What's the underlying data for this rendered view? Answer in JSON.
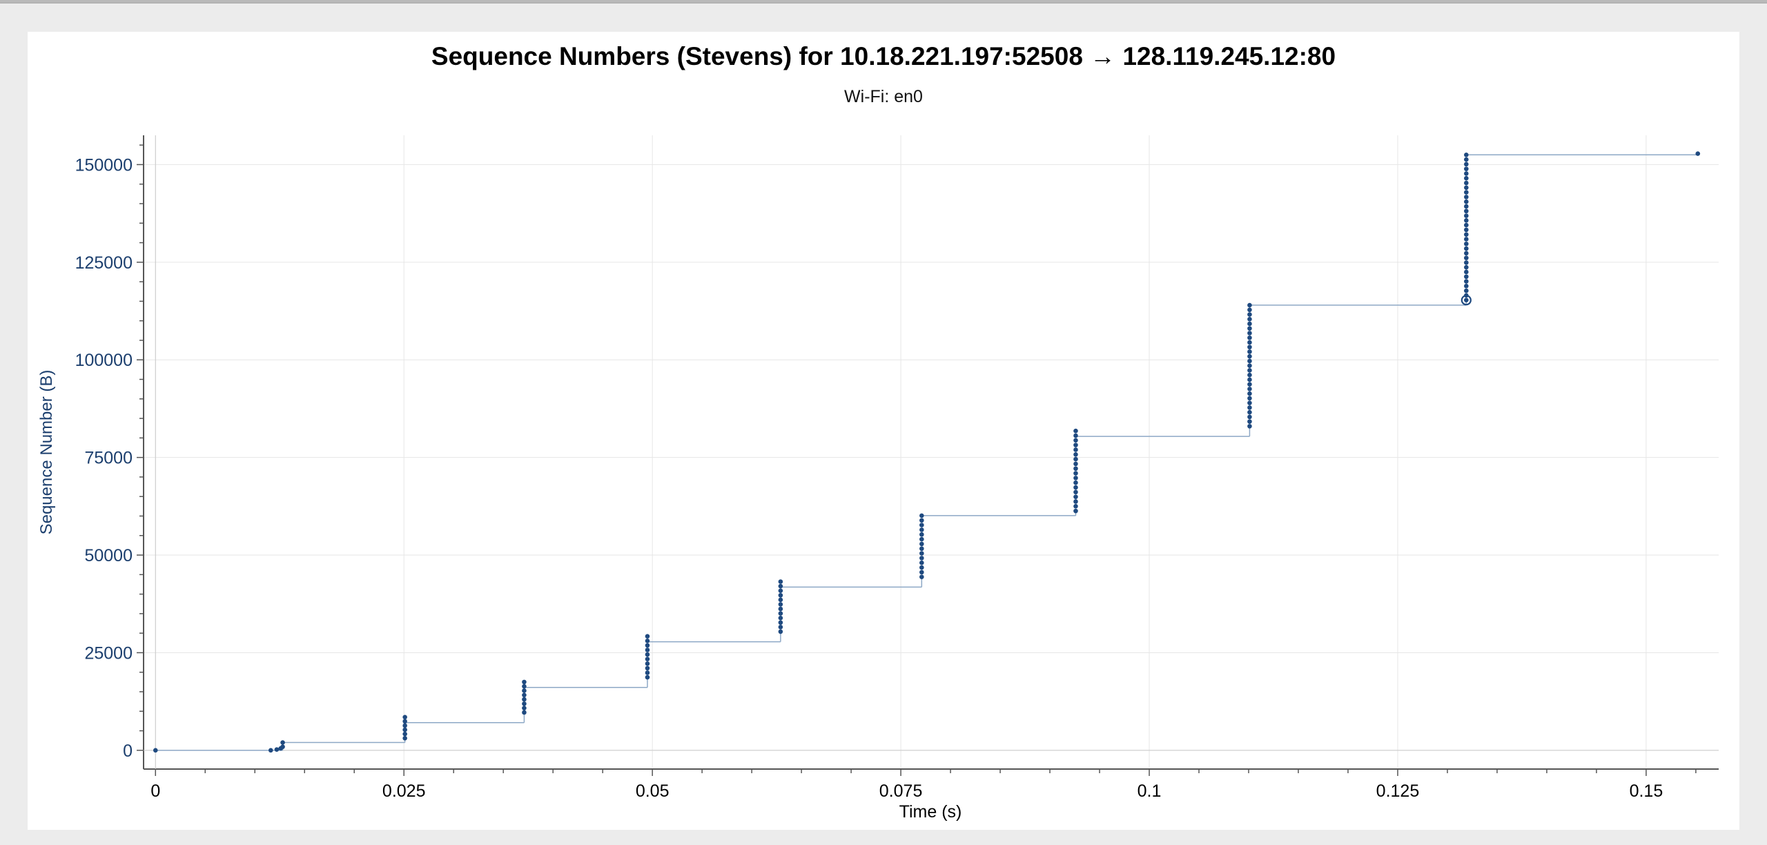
{
  "window": {
    "title": ""
  },
  "chart_data": {
    "type": "scatter",
    "title": "Sequence Numbers (Stevens) for 10.18.221.197:52508 → 128.119.245.12:80",
    "subtitle": "Wi-Fi: en0",
    "xlabel": "Time (s)",
    "ylabel": "Sequence Number (B)",
    "xlim": [
      -0.0012,
      0.1573
    ],
    "ylim": [
      -4800,
      157500
    ],
    "grid": true,
    "x_ticks": [
      {
        "value": 0,
        "label": "0"
      },
      {
        "value": 0.025,
        "label": "0.025"
      },
      {
        "value": 0.05,
        "label": "0.05"
      },
      {
        "value": 0.075,
        "label": "0.075"
      },
      {
        "value": 0.1,
        "label": "0.1"
      },
      {
        "value": 0.125,
        "label": "0.125"
      },
      {
        "value": 0.15,
        "label": "0.15"
      }
    ],
    "y_ticks": [
      {
        "value": 0,
        "label": "0"
      },
      {
        "value": 25000,
        "label": "25000"
      },
      {
        "value": 50000,
        "label": "50000"
      },
      {
        "value": 75000,
        "label": "75000"
      },
      {
        "value": 100000,
        "label": "100000"
      },
      {
        "value": 125000,
        "label": "125000"
      },
      {
        "value": 150000,
        "label": "150000"
      }
    ],
    "colors": {
      "points": "#1f4a80",
      "step_line": "#8da8c6",
      "grid": "#e6e6e6",
      "axis": "#555555"
    },
    "bursts": [
      {
        "t": 0.0,
        "seq_from": 0,
        "seq_to": 0,
        "packets": 1
      },
      {
        "t": 0.0116,
        "seq_from": 0,
        "seq_to": 0,
        "packets": 1
      },
      {
        "t": 0.0122,
        "seq_from": 200,
        "seq_to": 200,
        "packets": 1
      },
      {
        "t": 0.0126,
        "seq_from": 500,
        "seq_to": 500,
        "packets": 1
      },
      {
        "t": 0.0128,
        "seq_from": 900,
        "seq_to": 2000,
        "packets": 2
      },
      {
        "t": 0.0251,
        "seq_from": 3100,
        "seq_to": 8500,
        "packets": 6
      },
      {
        "t": 0.0371,
        "seq_from": 9700,
        "seq_to": 17500,
        "packets": 8
      },
      {
        "t": 0.0495,
        "seq_from": 18700,
        "seq_to": 29200,
        "packets": 10
      },
      {
        "t": 0.0629,
        "seq_from": 30400,
        "seq_to": 43200,
        "packets": 12
      },
      {
        "t": 0.0771,
        "seq_from": 44400,
        "seq_to": 60100,
        "packets": 14
      },
      {
        "t": 0.0926,
        "seq_from": 61300,
        "seq_to": 81800,
        "packets": 18
      },
      {
        "t": 0.1101,
        "seq_from": 83000,
        "seq_to": 114000,
        "packets": 27
      },
      {
        "t": 0.1319,
        "seq_from": 115300,
        "seq_to": 152500,
        "packets": 32
      },
      {
        "t": 0.1552,
        "seq_from": 152800,
        "seq_to": 152800,
        "packets": 1
      }
    ],
    "steps": [
      {
        "t_from": 0.0,
        "t_to": 0.0128,
        "seq": 0
      },
      {
        "t_from": 0.0128,
        "t_to": 0.0251,
        "seq": 2000
      },
      {
        "t_from": 0.0251,
        "t_to": 0.0371,
        "seq": 7100
      },
      {
        "t_from": 0.0371,
        "t_to": 0.0495,
        "seq": 16100
      },
      {
        "t_from": 0.0495,
        "t_to": 0.0629,
        "seq": 27800
      },
      {
        "t_from": 0.0629,
        "t_to": 0.0771,
        "seq": 41800
      },
      {
        "t_from": 0.0771,
        "t_to": 0.0926,
        "seq": 60100
      },
      {
        "t_from": 0.0926,
        "t_to": 0.1101,
        "seq": 80400
      },
      {
        "t_from": 0.1101,
        "t_to": 0.1319,
        "seq": 114000
      },
      {
        "t_from": 0.1319,
        "t_to": 0.1552,
        "seq": 152500
      }
    ],
    "selected_point": {
      "t": 0.1319,
      "seq": 115300
    }
  }
}
